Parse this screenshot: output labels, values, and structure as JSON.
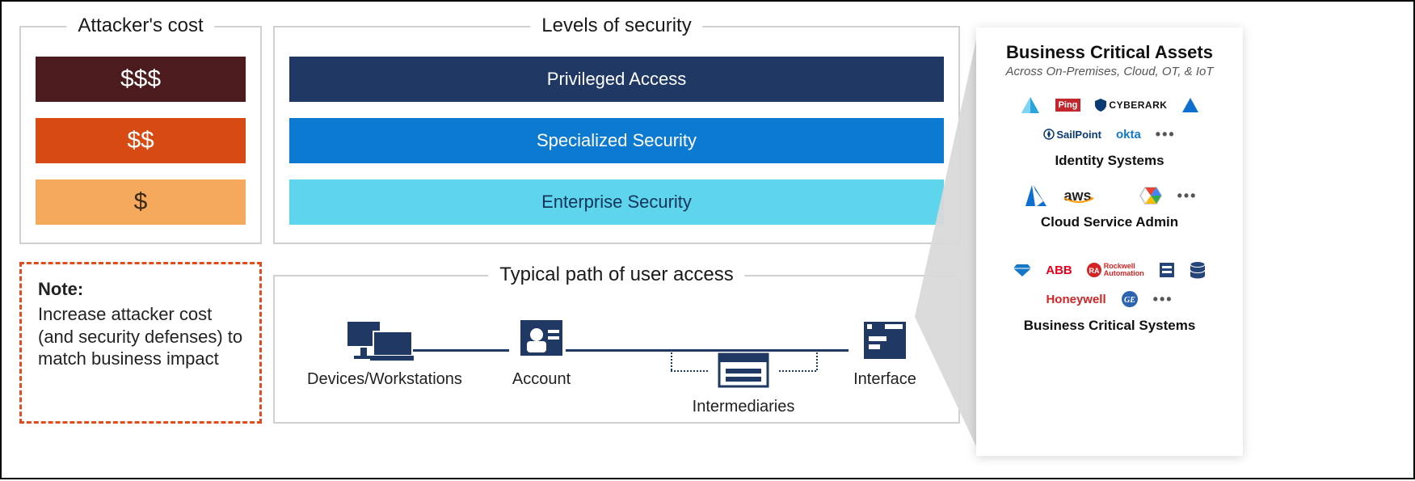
{
  "attacker_cost": {
    "title": "Attacker's cost",
    "bars": [
      {
        "label": "$$$",
        "color": "#4b1b1d",
        "text_color": "#ffffff"
      },
      {
        "label": "$$",
        "color": "#d84a13",
        "text_color": "#ffffff"
      },
      {
        "label": "$",
        "color": "#f4a95d",
        "text_color": "#3b2a14"
      }
    ],
    "bar_top_offsets": [
      36,
      112,
      188
    ]
  },
  "security_levels": {
    "title": "Levels of security",
    "bars": [
      {
        "label": "Privileged Access",
        "color": "#1f3864",
        "text_color": "#ffffff"
      },
      {
        "label": "Specialized Security",
        "color": "#0d7ad1",
        "text_color": "#ffffff"
      },
      {
        "label": "Enterprise Security",
        "color": "#5ed5ec",
        "text_color": "#13335a"
      }
    ],
    "bar_top_offsets": [
      36,
      112,
      188
    ]
  },
  "note": {
    "title": "Note:",
    "body": "Increase attacker cost (and security defenses) to match business impact",
    "border_color": "#e34a1c"
  },
  "path": {
    "title": "Typical path of user access",
    "nodes": {
      "devices": {
        "label": "Devices/Workstations"
      },
      "account": {
        "label": "Account"
      },
      "intermediaries": {
        "label": "Intermediaries"
      },
      "interface": {
        "label": "Interface"
      }
    },
    "icon_color": "#1f3864"
  },
  "assets": {
    "title": "Business Critical Assets",
    "subtitle": "Across On-Premises, Cloud, OT, & IoT",
    "groups": [
      {
        "label": "Identity Systems",
        "logos": [
          {
            "name": "azure-ad",
            "text": "",
            "color": "#2aa3de",
            "kind": "triangle"
          },
          {
            "name": "ping",
            "text": "Ping",
            "color": "#c1272d",
            "kind": "badge"
          },
          {
            "name": "cyberark",
            "text": "CYBERARK",
            "color": "#111111",
            "kind": "text-with-shield"
          },
          {
            "name": "aad-alt",
            "text": "",
            "color": "#0f6fd1",
            "kind": "triangle-small"
          },
          {
            "name": "sailpoint",
            "text": "SailPoint",
            "color": "#0a3a74",
            "kind": "text-with-compass"
          },
          {
            "name": "okta",
            "text": "okta",
            "color": "#1478c9",
            "kind": "text"
          },
          {
            "name": "ellipsis",
            "text": "•••",
            "color": "#666666",
            "kind": "ellipsis"
          }
        ]
      },
      {
        "label": "Cloud Service Admin",
        "logos": [
          {
            "name": "azure",
            "text": "",
            "color": "#0f6fd1",
            "kind": "azure"
          },
          {
            "name": "aws",
            "text": "aws",
            "color": "#222222",
            "accent": "#ff9900",
            "kind": "aws"
          },
          {
            "name": "gcp",
            "text": "",
            "color": "#4285f4",
            "kind": "gcp"
          },
          {
            "name": "ellipsis",
            "text": "•••",
            "color": "#666666",
            "kind": "ellipsis"
          }
        ]
      },
      {
        "label": "Business Critical Systems",
        "logos": [
          {
            "name": "sap",
            "text": "",
            "color": "#1478c9",
            "kind": "diamond"
          },
          {
            "name": "abb",
            "text": "ABB",
            "color": "#e7001d",
            "kind": "text"
          },
          {
            "name": "rockwell",
            "text": "Rockwell Automation",
            "color": "#d22424",
            "kind": "ra"
          },
          {
            "name": "generic1",
            "text": "",
            "color": "#25447a",
            "kind": "square"
          },
          {
            "name": "db",
            "text": "",
            "color": "#25447a",
            "kind": "cylinder"
          },
          {
            "name": "honeywell",
            "text": "Honeywell",
            "color": "#d22424",
            "kind": "text"
          },
          {
            "name": "ge",
            "text": "",
            "color": "#2d64b0",
            "kind": "ge"
          },
          {
            "name": "ellipsis",
            "text": "•••",
            "color": "#666666",
            "kind": "ellipsis"
          }
        ]
      }
    ]
  },
  "colors": {
    "panel_border": "#d0d0d0",
    "frame_border": "#000000",
    "beam": "#d9d9d9"
  }
}
